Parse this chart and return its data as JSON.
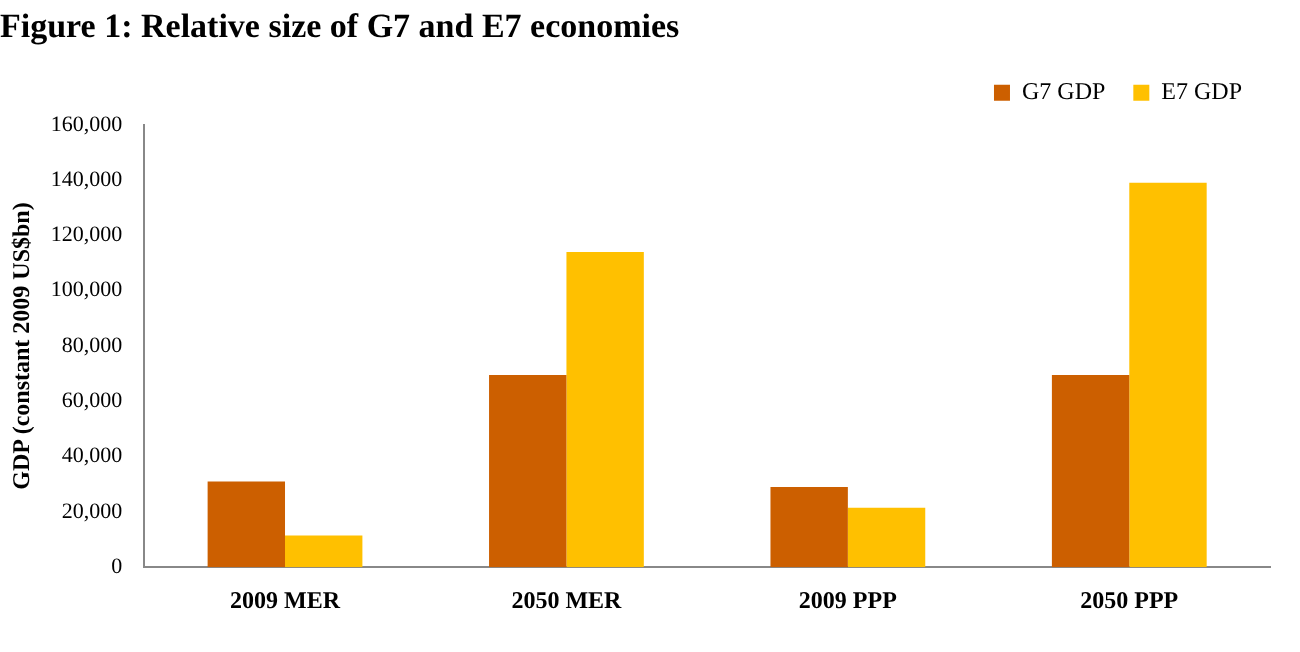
{
  "chart_data": {
    "type": "bar",
    "title": "Figure 1: Relative size of G7 and E7 economies",
    "ylabel": "GDP (constant 2009 US$bn)",
    "categories": [
      "2009 MER",
      "2050 MER",
      "2009 PPP",
      "2050 PPP"
    ],
    "series": [
      {
        "name": "G7 GDP",
        "color": "#cc5f00",
        "values": [
          31000,
          69500,
          29000,
          69500
        ]
      },
      {
        "name": "E7 GDP",
        "color": "#ffc000",
        "values": [
          11500,
          114000,
          21500,
          139000
        ]
      }
    ],
    "ylim": [
      0,
      160000
    ],
    "yticks": [
      {
        "value": 0,
        "label": "0"
      },
      {
        "value": 20000,
        "label": "20,000"
      },
      {
        "value": 40000,
        "label": "40,000"
      },
      {
        "value": 60000,
        "label": "60,000"
      },
      {
        "value": 80000,
        "label": "80,000"
      },
      {
        "value": 100000,
        "label": "100,000"
      },
      {
        "value": 120000,
        "label": "120,000"
      },
      {
        "value": 140000,
        "label": "140,000"
      },
      {
        "value": 160000,
        "label": "160,000"
      }
    ],
    "legend": "top right",
    "grid": false
  }
}
